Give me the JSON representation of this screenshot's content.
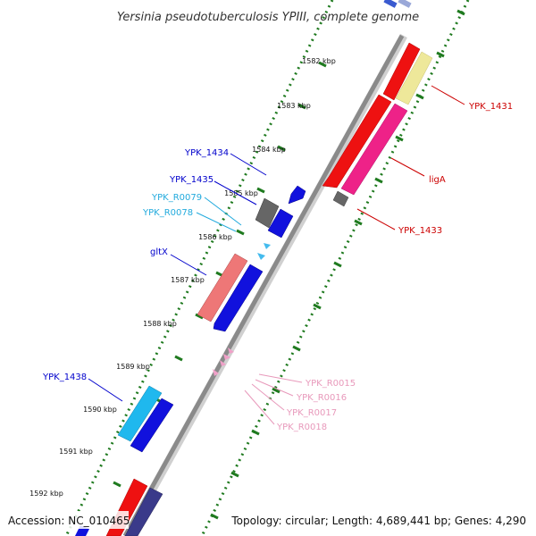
{
  "title": "Yersinia pseudotuberculosis YPIII, complete genome",
  "footer": {
    "accession": "Accession: NC_010465",
    "summary": "Topology: circular; Length: 4,689,441 bp; Genes: 4,290"
  },
  "colors": {
    "backbone": "#8a8a8a",
    "tick_dots": "#1f7a1f",
    "cds_red": "#ee1111",
    "cds_pink": "#ee2288",
    "cds_yellow": "#eee89a",
    "cds_gray": "#666666",
    "cds_blue": "#1111dd",
    "cds_salmon": "#ee7777",
    "cds_cyan": "#1fb8ee",
    "cds_navy": "#3a3a8a",
    "trna_cyan": "#44bbee",
    "trna_pink": "#f0a0c8",
    "label_red": "#cc0000",
    "label_blue": "#0000cc",
    "label_cyan": "#22aadd",
    "label_pink": "#e899bb"
  },
  "scale": {
    "unit": "kbp",
    "ticks": [
      "1582 kbp",
      "1583 kbp",
      "1584 kbp",
      "1585 kbp",
      "1586 kbp",
      "1587 kbp",
      "1588 kbp",
      "1589 kbp",
      "1590 kbp",
      "1591 kbp",
      "1592 kbp"
    ]
  },
  "genes": [
    {
      "name": "YPK_1431",
      "strand": "+",
      "type": "CDS",
      "color": "#cc0000"
    },
    {
      "name": "ligA",
      "strand": "+",
      "type": "CDS",
      "color": "#cc0000"
    },
    {
      "name": "YPK_1433",
      "strand": "+",
      "type": "CDS",
      "color": "#cc0000"
    },
    {
      "name": "YPK_1434",
      "strand": "-",
      "type": "CDS",
      "color": "#0000cc"
    },
    {
      "name": "YPK_1435",
      "strand": "-",
      "type": "CDS",
      "color": "#0000cc"
    },
    {
      "name": "YPK_R0079",
      "strand": "-",
      "type": "tRNA",
      "color": "#22aadd"
    },
    {
      "name": "YPK_R0078",
      "strand": "-",
      "type": "tRNA",
      "color": "#22aadd"
    },
    {
      "name": "gltX",
      "strand": "-",
      "type": "CDS",
      "color": "#0000cc"
    },
    {
      "name": "YPK_R0015",
      "strand": "-",
      "type": "tRNA",
      "color": "#e899bb"
    },
    {
      "name": "YPK_R0016",
      "strand": "-",
      "type": "tRNA",
      "color": "#e899bb"
    },
    {
      "name": "YPK_R0017",
      "strand": "-",
      "type": "tRNA",
      "color": "#e899bb"
    },
    {
      "name": "YPK_R0018",
      "strand": "-",
      "type": "tRNA",
      "color": "#e899bb"
    },
    {
      "name": "YPK_1438",
      "strand": "-",
      "type": "CDS",
      "color": "#0000cc"
    }
  ]
}
